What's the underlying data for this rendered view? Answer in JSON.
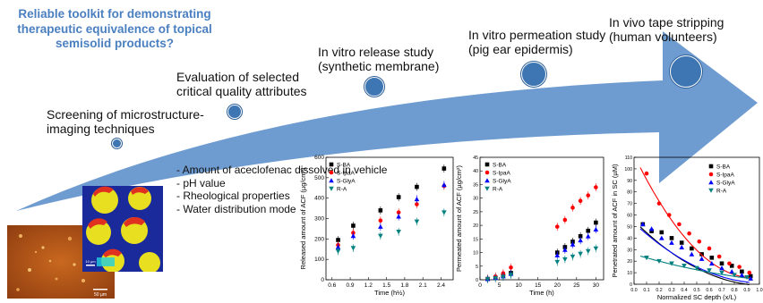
{
  "title": "Reliable toolkit for demonstrating\ntherapeutic equivalence of topical\nsemisolid products?",
  "steps": [
    {
      "label": "Screening of microstructure-\nimaging techniques"
    },
    {
      "label": "Evaluation of selected\ncritical quality attributes"
    },
    {
      "label": "In vitro release study\n(synthetic membrane)"
    },
    {
      "label": "In vitro permeation study\n(pig ear epidermis)"
    },
    {
      "label": "In vivo tape stripping\n(human volunteers)"
    }
  ],
  "attributes": [
    "- Amount of aceclofenac dissolved in vehicle",
    "- pH value",
    "- Rheological properties",
    "- Water distribution mode"
  ],
  "scale_bars": {
    "small": "50 µm",
    "large": "10 µm"
  },
  "colors": {
    "arrow": "#5b8ec9",
    "dot": "#3d76b3",
    "title": "#4a7fc0"
  },
  "chart_data": [
    {
      "type": "scatter",
      "xlabel": "Time (h½)",
      "ylabel": "Released amount of ACF (µg/cm²)",
      "xlim": [
        0.5,
        2.6
      ],
      "ylim": [
        0,
        600
      ],
      "xticks": [
        "0.6",
        "0.9",
        "1.2",
        "1.5",
        "1.8",
        "2.1",
        "2.4"
      ],
      "yticks": [
        "0",
        "100",
        "200",
        "300",
        "400",
        "500",
        "600"
      ],
      "series": [
        {
          "name": "S-BA",
          "color": "#000000",
          "marker": "square",
          "x": [
            0.7,
            0.95,
            1.4,
            1.7,
            2.0,
            2.45
          ],
          "y": [
            195,
            265,
            340,
            405,
            455,
            545
          ]
        },
        {
          "name": "S-IpaA",
          "color": "#ff0000",
          "marker": "circle",
          "x": [
            0.7,
            0.95,
            1.4,
            1.7,
            2.0,
            2.45
          ],
          "y": [
            170,
            230,
            290,
            330,
            370,
            460
          ]
        },
        {
          "name": "S-GlyA",
          "color": "#0000ff",
          "marker": "triangle",
          "x": [
            0.7,
            0.95,
            1.4,
            1.7,
            2.0,
            2.45
          ],
          "y": [
            160,
            215,
            260,
            310,
            395,
            465
          ]
        },
        {
          "name": "R-A",
          "color": "#008080",
          "marker": "triangle-down",
          "x": [
            0.7,
            0.95,
            1.4,
            1.7,
            2.0,
            2.45
          ],
          "y": [
            140,
            155,
            215,
            235,
            285,
            330
          ]
        }
      ]
    },
    {
      "type": "scatter",
      "xlabel": "Time (h)",
      "ylabel": "Permeated amount of ACF (µg/cm²)",
      "xlim": [
        0,
        32
      ],
      "ylim": [
        0,
        45
      ],
      "xticks": [
        "0",
        "5",
        "10",
        "15",
        "20",
        "25",
        "30"
      ],
      "yticks": [
        "0",
        "5",
        "10",
        "15",
        "20",
        "25",
        "30",
        "35",
        "40",
        "45"
      ],
      "series": [
        {
          "name": "S-BA",
          "color": "#000000",
          "marker": "square",
          "x": [
            2,
            4,
            6,
            8,
            20,
            22,
            24,
            26,
            28,
            30
          ],
          "y": [
            0.3,
            0.8,
            1.5,
            2.5,
            10,
            12,
            14,
            16,
            18,
            21
          ]
        },
        {
          "name": "S-IpaA",
          "color": "#ff0000",
          "marker": "circle",
          "x": [
            2,
            4,
            6,
            8,
            20,
            22,
            24,
            26,
            28,
            30
          ],
          "y": [
            0.4,
            1.2,
            2.4,
            4.5,
            19.5,
            22,
            26.5,
            29,
            31,
            34
          ]
        },
        {
          "name": "S-GlyA",
          "color": "#0000ff",
          "marker": "triangle",
          "x": [
            2,
            4,
            6,
            8,
            20,
            22,
            24,
            26,
            28,
            30
          ],
          "y": [
            0.3,
            0.7,
            1.3,
            2.2,
            9,
            11,
            13,
            14.5,
            16,
            18.5
          ]
        },
        {
          "name": "R-A",
          "color": "#008080",
          "marker": "triangle-down",
          "x": [
            2,
            4,
            6,
            8,
            20,
            22,
            24,
            26,
            28,
            30
          ],
          "y": [
            0.2,
            0.5,
            1.0,
            1.8,
            6.5,
            7.5,
            8.5,
            9.5,
            10.5,
            11.5
          ]
        }
      ]
    },
    {
      "type": "scatter",
      "xlabel": "Normalized SC depth (x/L)",
      "ylabel": "Penetrated amount of ACF in SC (µM)",
      "xlim": [
        0,
        1.0
      ],
      "ylim": [
        0,
        110
      ],
      "xticks": [
        "0.0",
        "0.1",
        "0.2",
        "0.3",
        "0.4",
        "0.5",
        "0.6",
        "0.7",
        "0.8",
        "0.9",
        "1.0"
      ],
      "yticks": [
        "0",
        "10",
        "20",
        "30",
        "40",
        "50",
        "60",
        "70",
        "80",
        "90",
        "100",
        "110"
      ],
      "series": [
        {
          "name": "S-BA",
          "color": "#000000",
          "marker": "square",
          "x": [
            0.07,
            0.14,
            0.22,
            0.3,
            0.38,
            0.46,
            0.54,
            0.62,
            0.7,
            0.78,
            0.86,
            0.93
          ],
          "y": [
            52,
            46,
            45,
            40,
            36,
            31,
            26,
            23,
            18,
            16,
            11,
            7
          ],
          "fit": [
            55,
            -108,
            52
          ]
        },
        {
          "name": "S-IpaA",
          "color": "#ff0000",
          "marker": "circle",
          "x": [
            0.1,
            0.2,
            0.28,
            0.36,
            0.44,
            0.52,
            0.6,
            0.68,
            0.76,
            0.84,
            0.92
          ],
          "y": [
            96,
            70,
            60,
            52,
            44,
            37,
            31,
            24,
            18,
            15,
            10
          ],
          "fit": [
            112,
            -224,
            118
          ]
        },
        {
          "name": "S-GlyA",
          "color": "#0000ff",
          "marker": "triangle",
          "x": [
            0.07,
            0.14,
            0.22,
            0.3,
            0.38,
            0.46,
            0.54,
            0.62,
            0.7,
            0.78,
            0.86,
            0.93
          ],
          "y": [
            52,
            48,
            40,
            36,
            32,
            26,
            22,
            18,
            14,
            11,
            8,
            5
          ],
          "fit": [
            53,
            -100,
            48
          ]
        },
        {
          "name": "R-A",
          "color": "#008080",
          "marker": "triangle-down",
          "x": [
            0.1,
            0.2,
            0.3,
            0.4,
            0.5,
            0.6,
            0.7,
            0.8,
            0.9
          ],
          "y": [
            23,
            20,
            18,
            16,
            14,
            12,
            10,
            8,
            6
          ],
          "fit": [
            26,
            -32,
            10
          ]
        }
      ]
    }
  ]
}
